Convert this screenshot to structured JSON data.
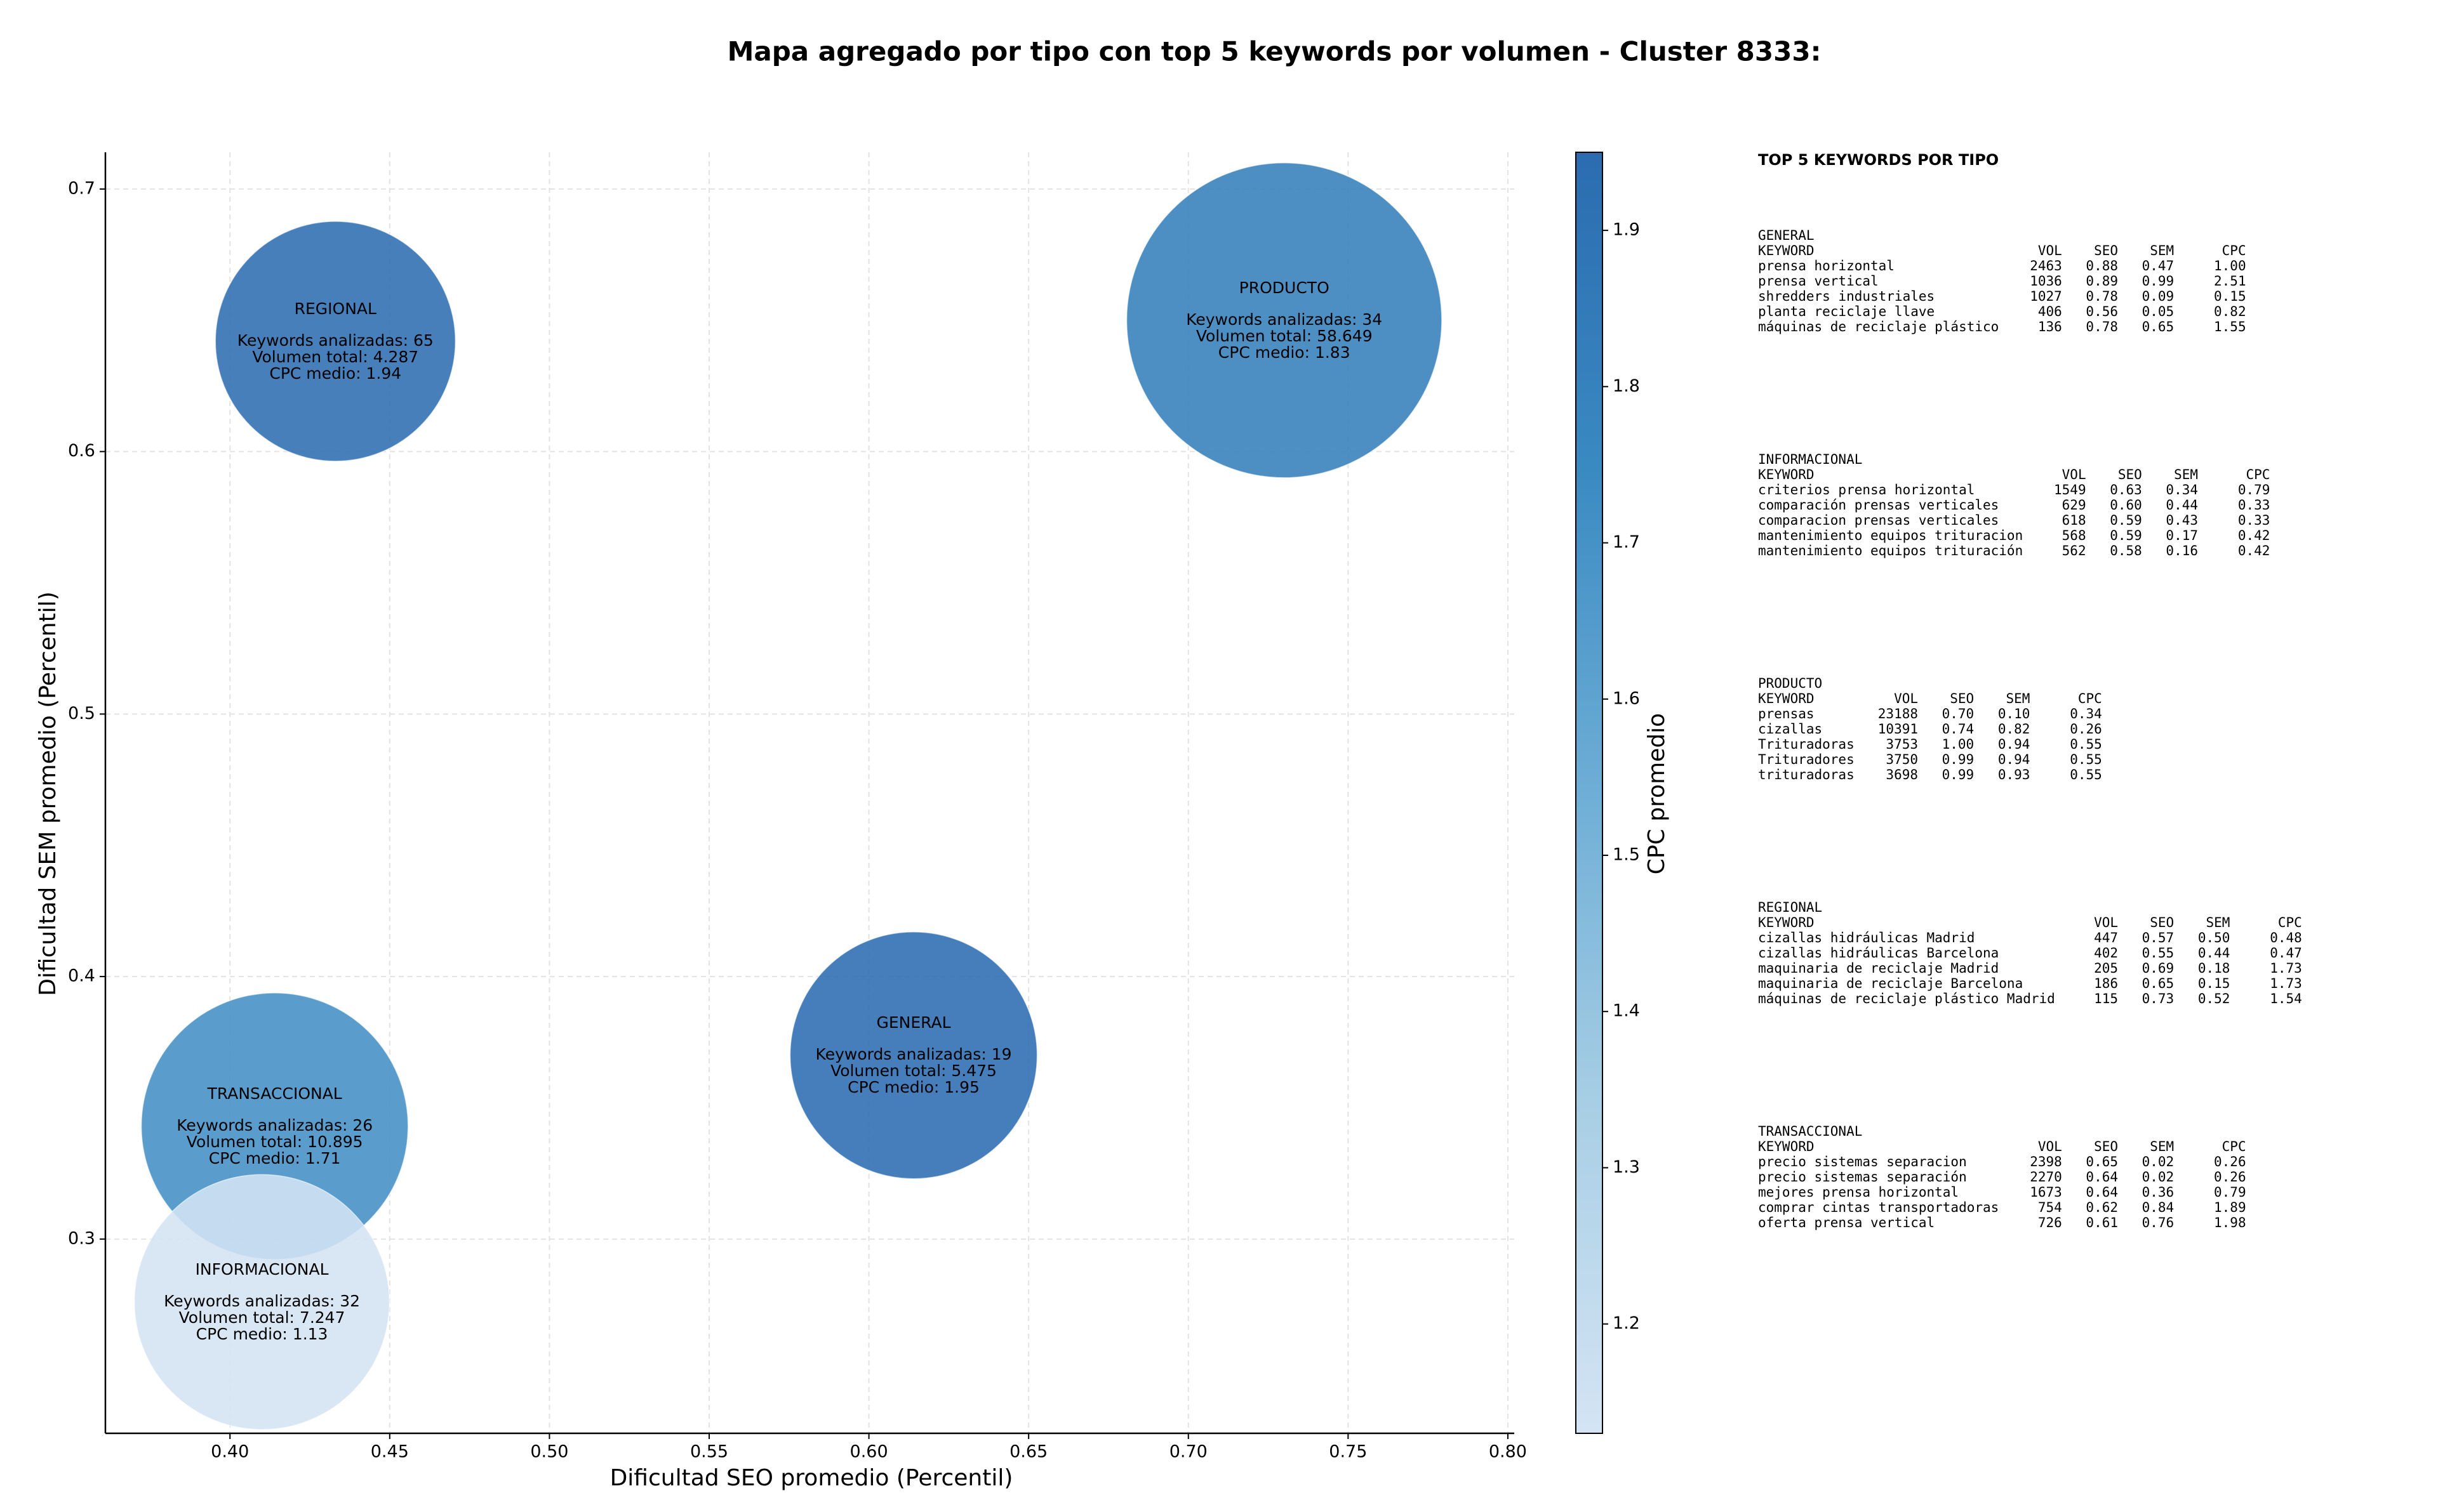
{
  "chart_data": {
    "type": "bubble",
    "title": "Mapa agregado por tipo con top 5 keywords por volumen - Cluster 8333:",
    "x_label": "Dificultad SEO promedio (Percentil)",
    "y_label": "Dificultad SEM promedio (Percentil)",
    "colorbar_label": "CPC promedio",
    "xlim": [
      0.361,
      0.802
    ],
    "ylim": [
      0.226,
      0.714
    ],
    "xticks": [
      {
        "value": 0.4,
        "label": "0.40"
      },
      {
        "value": 0.45,
        "label": "0.45"
      },
      {
        "value": 0.5,
        "label": "0.50"
      },
      {
        "value": 0.55,
        "label": "0.55"
      },
      {
        "value": 0.6,
        "label": "0.60"
      },
      {
        "value": 0.65,
        "label": "0.65"
      },
      {
        "value": 0.7,
        "label": "0.70"
      },
      {
        "value": 0.75,
        "label": "0.75"
      },
      {
        "value": 0.8,
        "label": "0.80"
      }
    ],
    "yticks": [
      0.3,
      0.4,
      0.5,
      0.6,
      0.7
    ],
    "clim": [
      1.13,
      1.95
    ],
    "cticks": [
      1.2,
      1.3,
      1.4,
      1.5,
      1.6,
      1.7,
      1.8,
      1.9
    ],
    "colormap": [
      "#d4e4f4",
      "#a9cfe5",
      "#6eaed6",
      "#3a8ac2",
      "#2b6cb0"
    ],
    "grid": true,
    "points": [
      {
        "x": 0.433,
        "y": 0.642,
        "cpc": 1.94,
        "volume": 4287,
        "lines": [
          "REGIONAL",
          "Keywords analizadas: 65",
          "Volumen total: 4.287",
          "CPC medio: 1.94"
        ]
      },
      {
        "x": 0.73,
        "y": 0.65,
        "cpc": 1.83,
        "volume": 58649,
        "lines": [
          "PRODUCTO",
          "Keywords analizadas: 34",
          "Volumen total: 58.649",
          "CPC medio: 1.83"
        ]
      },
      {
        "x": 0.614,
        "y": 0.37,
        "cpc": 1.95,
        "volume": 5475,
        "lines": [
          "GENERAL",
          "Keywords analizadas: 19",
          "Volumen total: 5.475",
          "CPC medio: 1.95"
        ]
      },
      {
        "x": 0.414,
        "y": 0.343,
        "cpc": 1.71,
        "volume": 10895,
        "lines": [
          "TRANSACCIONAL",
          "Keywords analizadas: 26",
          "Volumen total: 10.895",
          "CPC medio: 1.71"
        ]
      },
      {
        "x": 0.41,
        "y": 0.276,
        "cpc": 1.13,
        "volume": 7247,
        "lines": [
          "INFORMACIONAL",
          "Keywords analizadas: 32",
          "Volumen total: 7.247",
          "CPC medio: 1.13"
        ]
      }
    ],
    "panel": {
      "title": "TOP 5 KEYWORDS POR TIPO",
      "header": [
        "KEYWORD",
        "VOL",
        "SEO",
        "SEM",
        "CPC"
      ],
      "sections": [
        {
          "name": "GENERAL",
          "rows": [
            [
              "prensa horizontal",
              "2463",
              "0.88",
              "0.47",
              "1.00"
            ],
            [
              "prensa vertical",
              "1036",
              "0.89",
              "0.99",
              "2.51"
            ],
            [
              "shredders industriales",
              "1027",
              "0.78",
              "0.09",
              "0.15"
            ],
            [
              "planta reciclaje llave",
              "406",
              "0.56",
              "0.05",
              "0.82"
            ],
            [
              "máquinas de reciclaje plástico",
              "136",
              "0.78",
              "0.65",
              "1.55"
            ]
          ]
        },
        {
          "name": "INFORMACIONAL",
          "rows": [
            [
              "criterios prensa horizontal",
              "1549",
              "0.63",
              "0.34",
              "0.79"
            ],
            [
              "comparación prensas verticales",
              "629",
              "0.60",
              "0.44",
              "0.33"
            ],
            [
              "comparacion prensas verticales",
              "618",
              "0.59",
              "0.43",
              "0.33"
            ],
            [
              "mantenimiento equipos trituracion",
              "568",
              "0.59",
              "0.17",
              "0.42"
            ],
            [
              "mantenimiento equipos trituración",
              "562",
              "0.58",
              "0.16",
              "0.42"
            ]
          ]
        },
        {
          "name": "PRODUCTO",
          "rows": [
            [
              "prensas",
              "23188",
              "0.70",
              "0.10",
              "0.34"
            ],
            [
              "cizallas",
              "10391",
              "0.74",
              "0.82",
              "0.26"
            ],
            [
              "Trituradoras",
              "3753",
              "1.00",
              "0.94",
              "0.55"
            ],
            [
              "Trituradores",
              "3750",
              "0.99",
              "0.94",
              "0.55"
            ],
            [
              "trituradoras",
              "3698",
              "0.99",
              "0.93",
              "0.55"
            ]
          ]
        },
        {
          "name": "REGIONAL",
          "rows": [
            [
              "cizallas hidráulicas Madrid",
              "447",
              "0.57",
              "0.50",
              "0.48"
            ],
            [
              "cizallas hidráulicas Barcelona",
              "402",
              "0.55",
              "0.44",
              "0.47"
            ],
            [
              "maquinaria de reciclaje Madrid",
              "205",
              "0.69",
              "0.18",
              "1.73"
            ],
            [
              "maquinaria de reciclaje Barcelona",
              "186",
              "0.65",
              "0.15",
              "1.73"
            ],
            [
              "máquinas de reciclaje plástico Madrid",
              "115",
              "0.73",
              "0.52",
              "1.54"
            ]
          ]
        },
        {
          "name": "TRANSACCIONAL",
          "rows": [
            [
              "precio sistemas separacion",
              "2398",
              "0.65",
              "0.02",
              "0.26"
            ],
            [
              "precio sistemas separación",
              "2270",
              "0.64",
              "0.02",
              "0.26"
            ],
            [
              "mejores prensa horizontal",
              "1673",
              "0.64",
              "0.36",
              "0.79"
            ],
            [
              "comprar cintas transportadoras",
              "754",
              "0.62",
              "0.84",
              "1.89"
            ],
            [
              "oferta prensa vertical",
              "726",
              "0.61",
              "0.76",
              "1.98"
            ]
          ]
        }
      ]
    }
  }
}
